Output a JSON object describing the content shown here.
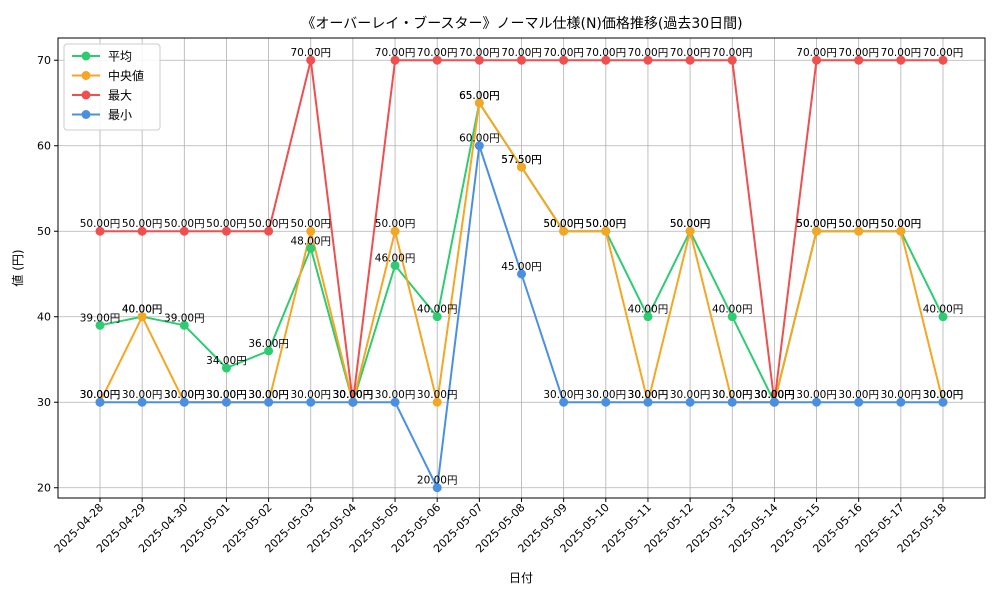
{
  "chart_data": {
    "type": "line",
    "title": "《オーバーレイ・ブースター》ノーマル仕様(N)価格推移(過去30日間)",
    "xlabel": "日付",
    "ylabel": "値 (円)",
    "ylim": [
      18.8,
      72.6
    ],
    "yticks": [
      20,
      30,
      40,
      50,
      60,
      70
    ],
    "grid": true,
    "legend_position": "top-left",
    "label_suffix": "円",
    "categories": [
      "2025-04-28",
      "2025-04-29",
      "2025-04-30",
      "2025-05-01",
      "2025-05-02",
      "2025-05-03",
      "2025-05-04",
      "2025-05-05",
      "2025-05-06",
      "2025-05-07",
      "2025-05-08",
      "2025-05-09",
      "2025-05-10",
      "2025-05-11",
      "2025-05-12",
      "2025-05-13",
      "2025-05-14",
      "2025-05-15",
      "2025-05-16",
      "2025-05-17",
      "2025-05-18"
    ],
    "series": [
      {
        "name": "平均",
        "color": "#2ecc71",
        "values": [
          39,
          40,
          39,
          34,
          36,
          48,
          30,
          46,
          40,
          65,
          57.5,
          50,
          50,
          40,
          50,
          40,
          30,
          50,
          50,
          50,
          40
        ]
      },
      {
        "name": "中央値",
        "color": "#f5a623",
        "values": [
          30,
          40,
          30,
          30,
          30,
          50,
          30,
          50,
          30,
          65,
          57.5,
          50,
          50,
          30,
          50,
          30,
          30,
          50,
          50,
          50,
          30
        ]
      },
      {
        "name": "最大",
        "color": "#ef4f4f",
        "values": [
          50,
          50,
          50,
          50,
          50,
          70,
          30,
          70,
          70,
          70,
          70,
          70,
          70,
          70,
          70,
          70,
          30,
          70,
          70,
          70,
          70
        ]
      },
      {
        "name": "最小",
        "color": "#4a90e2",
        "values": [
          30,
          30,
          30,
          30,
          30,
          30,
          30,
          30,
          20,
          60,
          45,
          30,
          30,
          30,
          30,
          30,
          30,
          30,
          30,
          30,
          30
        ]
      }
    ]
  }
}
